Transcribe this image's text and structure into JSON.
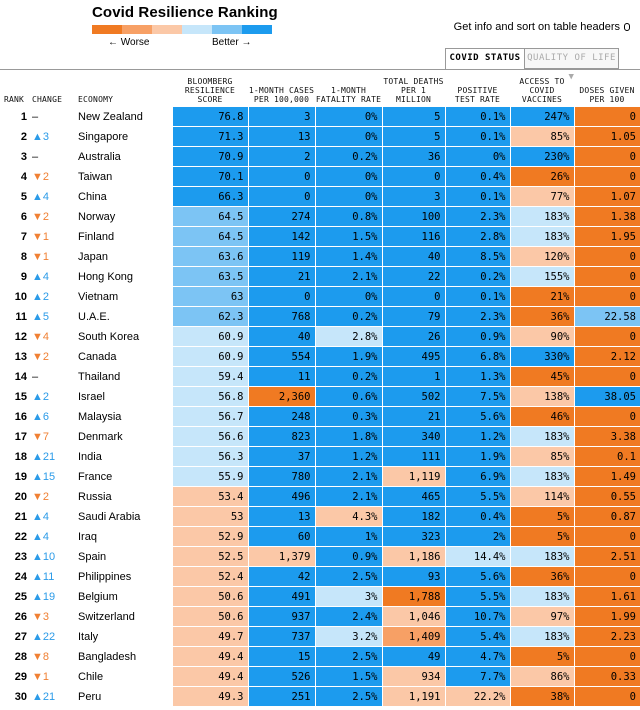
{
  "title": "Covid Resilience Ranking",
  "legend": {
    "colors": [
      "#f07a22",
      "#f7a065",
      "#fbc8a7",
      "#c6e6fa",
      "#7cc4f4",
      "#1c9bee"
    ],
    "worse_label": "← Worse",
    "better_label": "Better →"
  },
  "hint": "Get info and sort on table headers",
  "tabs": {
    "covid": "COVID STATUS",
    "quality": "QUALITY OF LIFE ▼"
  },
  "columns": {
    "rank": "RANK",
    "change": "CHANGE",
    "economy": "ECONOMY",
    "score": "BLOOMBERG RESILIENCE SCORE",
    "cases": "1-MONTH CASES PER 100,000",
    "fatality": "1-MONTH FATALITY RATE",
    "deaths": "TOTAL DEATHS PER 1 MILLION",
    "positive": "POSITIVE TEST RATE",
    "vaccines": "ACCESS TO COVID VACCINES",
    "doses": "DOSES GIVEN PER 100"
  },
  "palette": {
    "a": "#1c9bee",
    "b": "#7cc4f4",
    "c": "#c6e6fa",
    "d": "#fbc8a7",
    "e": "#f7a065",
    "f": "#f07a22"
  },
  "rows": [
    {
      "rank": "1",
      "dir": "none",
      "change": "–",
      "economy": "New Zealand",
      "cells": [
        [
          "76.8",
          "a"
        ],
        [
          "3",
          "a"
        ],
        [
          "0%",
          "a"
        ],
        [
          "5",
          "a"
        ],
        [
          "0.1%",
          "a"
        ],
        [
          "247%",
          "a"
        ],
        [
          "0",
          "f"
        ]
      ]
    },
    {
      "rank": "2",
      "dir": "up",
      "change": "▲3",
      "economy": "Singapore",
      "cells": [
        [
          "71.3",
          "a"
        ],
        [
          "13",
          "a"
        ],
        [
          "0%",
          "a"
        ],
        [
          "5",
          "a"
        ],
        [
          "0.1%",
          "a"
        ],
        [
          "85%",
          "d"
        ],
        [
          "1.05",
          "f"
        ]
      ]
    },
    {
      "rank": "3",
      "dir": "none",
      "change": "–",
      "economy": "Australia",
      "cells": [
        [
          "70.9",
          "a"
        ],
        [
          "2",
          "a"
        ],
        [
          "0.2%",
          "a"
        ],
        [
          "36",
          "a"
        ],
        [
          "0%",
          "a"
        ],
        [
          "230%",
          "a"
        ],
        [
          "0",
          "f"
        ]
      ]
    },
    {
      "rank": "4",
      "dir": "down",
      "change": "▼2",
      "economy": "Taiwan",
      "cells": [
        [
          "70.1",
          "a"
        ],
        [
          "0",
          "a"
        ],
        [
          "0%",
          "a"
        ],
        [
          "0",
          "a"
        ],
        [
          "0.4%",
          "a"
        ],
        [
          "26%",
          "f"
        ],
        [
          "0",
          "f"
        ]
      ]
    },
    {
      "rank": "5",
      "dir": "up",
      "change": "▲4",
      "economy": "China",
      "cells": [
        [
          "66.3",
          "a"
        ],
        [
          "0",
          "a"
        ],
        [
          "0%",
          "a"
        ],
        [
          "3",
          "a"
        ],
        [
          "0.1%",
          "a"
        ],
        [
          "77%",
          "d"
        ],
        [
          "1.07",
          "f"
        ]
      ]
    },
    {
      "rank": "6",
      "dir": "down",
      "change": "▼2",
      "economy": "Norway",
      "cells": [
        [
          "64.5",
          "b"
        ],
        [
          "274",
          "a"
        ],
        [
          "0.8%",
          "a"
        ],
        [
          "100",
          "a"
        ],
        [
          "2.3%",
          "a"
        ],
        [
          "183%",
          "c"
        ],
        [
          "1.38",
          "f"
        ]
      ]
    },
    {
      "rank": "7",
      "dir": "down",
      "change": "▼1",
      "economy": "Finland",
      "cells": [
        [
          "64.5",
          "b"
        ],
        [
          "142",
          "a"
        ],
        [
          "1.5%",
          "a"
        ],
        [
          "116",
          "a"
        ],
        [
          "2.8%",
          "a"
        ],
        [
          "183%",
          "c"
        ],
        [
          "1.95",
          "f"
        ]
      ]
    },
    {
      "rank": "8",
      "dir": "down",
      "change": "▼1",
      "economy": "Japan",
      "cells": [
        [
          "63.6",
          "b"
        ],
        [
          "119",
          "a"
        ],
        [
          "1.4%",
          "a"
        ],
        [
          "40",
          "a"
        ],
        [
          "8.5%",
          "a"
        ],
        [
          "120%",
          "d"
        ],
        [
          "0",
          "f"
        ]
      ]
    },
    {
      "rank": "9",
      "dir": "up",
      "change": "▲4",
      "economy": "Hong Kong",
      "cells": [
        [
          "63.5",
          "b"
        ],
        [
          "21",
          "a"
        ],
        [
          "2.1%",
          "a"
        ],
        [
          "22",
          "a"
        ],
        [
          "0.2%",
          "a"
        ],
        [
          "155%",
          "c"
        ],
        [
          "0",
          "f"
        ]
      ]
    },
    {
      "rank": "10",
      "dir": "up",
      "change": "▲2",
      "economy": "Vietnam",
      "cells": [
        [
          "63",
          "b"
        ],
        [
          "0",
          "a"
        ],
        [
          "0%",
          "a"
        ],
        [
          "0",
          "a"
        ],
        [
          "0.1%",
          "a"
        ],
        [
          "21%",
          "f"
        ],
        [
          "0",
          "f"
        ]
      ]
    },
    {
      "rank": "11",
      "dir": "up",
      "change": "▲5",
      "economy": "U.A.E.",
      "cells": [
        [
          "62.3",
          "b"
        ],
        [
          "768",
          "a"
        ],
        [
          "0.2%",
          "a"
        ],
        [
          "79",
          "a"
        ],
        [
          "2.3%",
          "a"
        ],
        [
          "36%",
          "f"
        ],
        [
          "22.58",
          "b"
        ]
      ]
    },
    {
      "rank": "12",
      "dir": "down",
      "change": "▼4",
      "economy": "South Korea",
      "cells": [
        [
          "60.9",
          "c"
        ],
        [
          "40",
          "a"
        ],
        [
          "2.8%",
          "c"
        ],
        [
          "26",
          "a"
        ],
        [
          "0.9%",
          "a"
        ],
        [
          "90%",
          "d"
        ],
        [
          "0",
          "f"
        ]
      ]
    },
    {
      "rank": "13",
      "dir": "down",
      "change": "▼2",
      "economy": "Canada",
      "cells": [
        [
          "60.9",
          "c"
        ],
        [
          "554",
          "a"
        ],
        [
          "1.9%",
          "a"
        ],
        [
          "495",
          "a"
        ],
        [
          "6.8%",
          "a"
        ],
        [
          "330%",
          "a"
        ],
        [
          "2.12",
          "f"
        ]
      ]
    },
    {
      "rank": "14",
      "dir": "none",
      "change": "–",
      "economy": "Thailand",
      "cells": [
        [
          "59.4",
          "c"
        ],
        [
          "11",
          "a"
        ],
        [
          "0.2%",
          "a"
        ],
        [
          "1",
          "a"
        ],
        [
          "1.3%",
          "a"
        ],
        [
          "45%",
          "f"
        ],
        [
          "0",
          "f"
        ]
      ]
    },
    {
      "rank": "15",
      "dir": "up",
      "change": "▲2",
      "economy": "Israel",
      "cells": [
        [
          "56.8",
          "c"
        ],
        [
          "2,360",
          "f"
        ],
        [
          "0.6%",
          "a"
        ],
        [
          "502",
          "a"
        ],
        [
          "7.5%",
          "a"
        ],
        [
          "138%",
          "d"
        ],
        [
          "38.05",
          "a"
        ]
      ]
    },
    {
      "rank": "16",
      "dir": "up",
      "change": "▲6",
      "economy": "Malaysia",
      "cells": [
        [
          "56.7",
          "c"
        ],
        [
          "248",
          "a"
        ],
        [
          "0.3%",
          "a"
        ],
        [
          "21",
          "a"
        ],
        [
          "5.6%",
          "a"
        ],
        [
          "46%",
          "f"
        ],
        [
          "0",
          "f"
        ]
      ]
    },
    {
      "rank": "17",
      "dir": "down",
      "change": "▼7",
      "economy": "Denmark",
      "cells": [
        [
          "56.6",
          "c"
        ],
        [
          "823",
          "a"
        ],
        [
          "1.8%",
          "a"
        ],
        [
          "340",
          "a"
        ],
        [
          "1.2%",
          "a"
        ],
        [
          "183%",
          "c"
        ],
        [
          "3.38",
          "f"
        ]
      ]
    },
    {
      "rank": "18",
      "dir": "up",
      "change": "▲21",
      "economy": "India",
      "cells": [
        [
          "56.3",
          "c"
        ],
        [
          "37",
          "a"
        ],
        [
          "1.2%",
          "a"
        ],
        [
          "111",
          "a"
        ],
        [
          "1.9%",
          "a"
        ],
        [
          "85%",
          "d"
        ],
        [
          "0.1",
          "f"
        ]
      ]
    },
    {
      "rank": "19",
      "dir": "up",
      "change": "▲15",
      "economy": "France",
      "cells": [
        [
          "55.9",
          "c"
        ],
        [
          "780",
          "a"
        ],
        [
          "2.1%",
          "a"
        ],
        [
          "1,119",
          "d"
        ],
        [
          "6.9%",
          "a"
        ],
        [
          "183%",
          "c"
        ],
        [
          "1.49",
          "f"
        ]
      ]
    },
    {
      "rank": "20",
      "dir": "down",
      "change": "▼2",
      "economy": "Russia",
      "cells": [
        [
          "53.4",
          "d"
        ],
        [
          "496",
          "a"
        ],
        [
          "2.1%",
          "a"
        ],
        [
          "465",
          "a"
        ],
        [
          "5.5%",
          "a"
        ],
        [
          "114%",
          "d"
        ],
        [
          "0.55",
          "f"
        ]
      ]
    },
    {
      "rank": "21",
      "dir": "up",
      "change": "▲4",
      "economy": "Saudi Arabia",
      "cells": [
        [
          "53",
          "d"
        ],
        [
          "13",
          "a"
        ],
        [
          "4.3%",
          "d"
        ],
        [
          "182",
          "a"
        ],
        [
          "0.4%",
          "a"
        ],
        [
          "5%",
          "f"
        ],
        [
          "0.87",
          "f"
        ]
      ]
    },
    {
      "rank": "22",
      "dir": "up",
      "change": "▲4",
      "economy": "Iraq",
      "cells": [
        [
          "52.9",
          "d"
        ],
        [
          "60",
          "a"
        ],
        [
          "1%",
          "a"
        ],
        [
          "323",
          "a"
        ],
        [
          "2%",
          "a"
        ],
        [
          "5%",
          "f"
        ],
        [
          "0",
          "f"
        ]
      ]
    },
    {
      "rank": "23",
      "dir": "up",
      "change": "▲10",
      "economy": "Spain",
      "cells": [
        [
          "52.5",
          "d"
        ],
        [
          "1,379",
          "d"
        ],
        [
          "0.9%",
          "a"
        ],
        [
          "1,186",
          "d"
        ],
        [
          "14.4%",
          "c"
        ],
        [
          "183%",
          "c"
        ],
        [
          "2.51",
          "f"
        ]
      ]
    },
    {
      "rank": "24",
      "dir": "up",
      "change": "▲11",
      "economy": "Philippines",
      "cells": [
        [
          "52.4",
          "d"
        ],
        [
          "42",
          "a"
        ],
        [
          "2.5%",
          "a"
        ],
        [
          "93",
          "a"
        ],
        [
          "5.6%",
          "a"
        ],
        [
          "36%",
          "f"
        ],
        [
          "0",
          "f"
        ]
      ]
    },
    {
      "rank": "25",
      "dir": "up",
      "change": "▲19",
      "economy": "Belgium",
      "cells": [
        [
          "50.6",
          "d"
        ],
        [
          "491",
          "a"
        ],
        [
          "3%",
          "c"
        ],
        [
          "1,788",
          "f"
        ],
        [
          "5.5%",
          "a"
        ],
        [
          "183%",
          "c"
        ],
        [
          "1.61",
          "f"
        ]
      ]
    },
    {
      "rank": "26",
      "dir": "down",
      "change": "▼3",
      "economy": "Switzerland",
      "cells": [
        [
          "50.6",
          "d"
        ],
        [
          "937",
          "a"
        ],
        [
          "2.4%",
          "a"
        ],
        [
          "1,046",
          "d"
        ],
        [
          "10.7%",
          "a"
        ],
        [
          "97%",
          "d"
        ],
        [
          "1.99",
          "f"
        ]
      ]
    },
    {
      "rank": "27",
      "dir": "up",
      "change": "▲22",
      "economy": "Italy",
      "cells": [
        [
          "49.7",
          "d"
        ],
        [
          "737",
          "a"
        ],
        [
          "3.2%",
          "c"
        ],
        [
          "1,409",
          "e"
        ],
        [
          "5.4%",
          "a"
        ],
        [
          "183%",
          "c"
        ],
        [
          "2.23",
          "f"
        ]
      ]
    },
    {
      "rank": "28",
      "dir": "down",
      "change": "▼8",
      "economy": "Bangladesh",
      "cells": [
        [
          "49.4",
          "d"
        ],
        [
          "15",
          "a"
        ],
        [
          "2.5%",
          "a"
        ],
        [
          "49",
          "a"
        ],
        [
          "4.7%",
          "a"
        ],
        [
          "5%",
          "f"
        ],
        [
          "0",
          "f"
        ]
      ]
    },
    {
      "rank": "29",
      "dir": "down",
      "change": "▼1",
      "economy": "Chile",
      "cells": [
        [
          "49.4",
          "d"
        ],
        [
          "526",
          "a"
        ],
        [
          "1.5%",
          "a"
        ],
        [
          "934",
          "d"
        ],
        [
          "7.7%",
          "a"
        ],
        [
          "86%",
          "d"
        ],
        [
          "0.33",
          "f"
        ]
      ]
    },
    {
      "rank": "30",
      "dir": "up",
      "change": "▲21",
      "economy": "Peru",
      "cells": [
        [
          "49.3",
          "d"
        ],
        [
          "251",
          "a"
        ],
        [
          "2.5%",
          "a"
        ],
        [
          "1,191",
          "d"
        ],
        [
          "22.2%",
          "d"
        ],
        [
          "38%",
          "f"
        ],
        [
          "0",
          "f"
        ]
      ]
    }
  ]
}
